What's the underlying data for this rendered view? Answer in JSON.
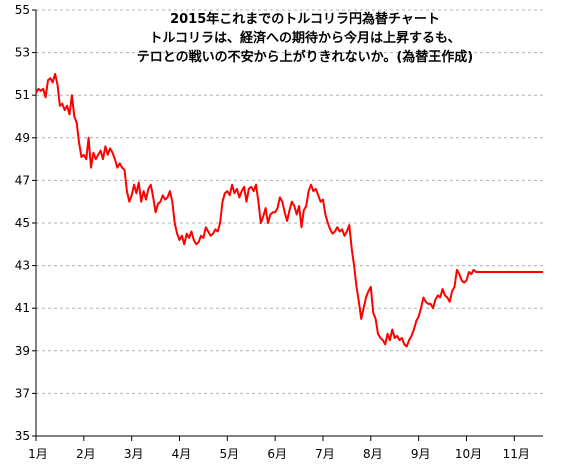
{
  "chart_data": {
    "type": "line",
    "title_lines": [
      "2015年これまでのトルコリラ円為替チャート",
      "トルコリラは、経済への期待から今月は上昇するも、",
      "テロとの戦いの不安から上がりきれないか。(為替王作成)"
    ],
    "xlabel": "",
    "ylabel": "",
    "ylim": [
      35,
      55
    ],
    "xlim": [
      0,
      10.6
    ],
    "grid": true,
    "grid_style": "dashed",
    "line_color": "#ff0000",
    "y_ticks": [
      35,
      37,
      39,
      41,
      43,
      45,
      47,
      49,
      51,
      53,
      55
    ],
    "x_ticks": [
      {
        "pos": 0,
        "label": "1月"
      },
      {
        "pos": 1,
        "label": "2月"
      },
      {
        "pos": 2,
        "label": "3月"
      },
      {
        "pos": 3,
        "label": "4月"
      },
      {
        "pos": 4,
        "label": "5月"
      },
      {
        "pos": 5,
        "label": "6月"
      },
      {
        "pos": 6,
        "label": "7月"
      },
      {
        "pos": 7,
        "label": "8月"
      },
      {
        "pos": 8,
        "label": "9月"
      },
      {
        "pos": 9,
        "label": "10月"
      },
      {
        "pos": 10,
        "label": "11月"
      }
    ],
    "series": [
      {
        "x": [
          0,
          0.05,
          0.1,
          0.15,
          0.2,
          0.25,
          0.3,
          0.35,
          0.4,
          0.45,
          0.5,
          0.55,
          0.6,
          0.65,
          0.7,
          0.75,
          0.8,
          0.85,
          0.9,
          0.95,
          1.0,
          1.05,
          1.1,
          1.15,
          1.2,
          1.25,
          1.3,
          1.35,
          1.4,
          1.45,
          1.5,
          1.55,
          1.6,
          1.65,
          1.7,
          1.75,
          1.8,
          1.85,
          1.9,
          1.95,
          2.0,
          2.05,
          2.1,
          2.15,
          2.2,
          2.25,
          2.3,
          2.35,
          2.4,
          2.45,
          2.5,
          2.55,
          2.6,
          2.65,
          2.7,
          2.75,
          2.8,
          2.85,
          2.9,
          2.95,
          3.0,
          3.05,
          3.1,
          3.15,
          3.2,
          3.25,
          3.3,
          3.35,
          3.4,
          3.45,
          3.5,
          3.55,
          3.6,
          3.65,
          3.7,
          3.75,
          3.8,
          3.85,
          3.9,
          3.95,
          4.0,
          4.05,
          4.1,
          4.15,
          4.2,
          4.25,
          4.3,
          4.35,
          4.4,
          4.45,
          4.5,
          4.55,
          4.6,
          4.65,
          4.7,
          4.75,
          4.8,
          4.85,
          4.9,
          4.95,
          5.0,
          5.05,
          5.1,
          5.15,
          5.2,
          5.25,
          5.3,
          5.35,
          5.4,
          5.45,
          5.5,
          5.55,
          5.6,
          5.65,
          5.7,
          5.75,
          5.8,
          5.85,
          5.9,
          5.95,
          6.0,
          6.05,
          6.1,
          6.15,
          6.2,
          6.25,
          6.3,
          6.35,
          6.4,
          6.45,
          6.5,
          6.55,
          6.6,
          6.65,
          6.7,
          6.75,
          6.8,
          6.85,
          6.9,
          6.95,
          7.0,
          7.05,
          7.1,
          7.15,
          7.2,
          7.25,
          7.3,
          7.35,
          7.4,
          7.45,
          7.5,
          7.55,
          7.6,
          7.65,
          7.7,
          7.75,
          7.8,
          7.85,
          7.9,
          7.95,
          8.0,
          8.05,
          8.1,
          8.15,
          8.2,
          8.25,
          8.3,
          8.35,
          8.4,
          8.45,
          8.5,
          8.55,
          8.6,
          8.65,
          8.7,
          8.75,
          8.8,
          8.85,
          8.9,
          8.95,
          9.0,
          9.05,
          9.1,
          9.15,
          9.2,
          9.25,
          9.3,
          9.35,
          9.4,
          9.45,
          9.5,
          9.55,
          9.6,
          9.65,
          9.7,
          9.75,
          9.8,
          9.85,
          9.9,
          9.95,
          10.0,
          10.05,
          10.1,
          10.15,
          10.2,
          10.25,
          10.3,
          10.35,
          10.4,
          10.45,
          10.5,
          10.55,
          10.6
        ],
        "y": [
          51.1,
          51.3,
          51.2,
          51.3,
          50.9,
          51.7,
          51.8,
          51.6,
          52.0,
          51.5,
          50.5,
          50.6,
          50.3,
          50.5,
          50.1,
          51.0,
          50.0,
          49.7,
          48.8,
          48.1,
          48.2,
          48.0,
          49.0,
          47.6,
          48.3,
          48.0,
          48.2,
          48.4,
          48.0,
          48.6,
          48.2,
          48.5,
          48.3,
          48.0,
          47.6,
          47.8,
          47.6,
          47.5,
          46.5,
          46.0,
          46.3,
          46.8,
          46.4,
          46.9,
          46.0,
          46.5,
          46.1,
          46.6,
          46.8,
          46.2,
          45.5,
          45.9,
          46.0,
          46.3,
          46.1,
          46.2,
          46.5,
          46.0,
          45.0,
          44.5,
          44.2,
          44.4,
          44.0,
          44.5,
          44.3,
          44.6,
          44.2,
          44.0,
          44.1,
          44.4,
          44.3,
          44.8,
          44.6,
          44.4,
          44.5,
          44.7,
          44.6,
          45.0,
          46.0,
          46.4,
          46.5,
          46.3,
          46.8,
          46.4,
          46.6,
          46.2,
          46.5,
          46.7,
          46.0,
          46.6,
          46.7,
          46.5,
          46.8,
          46.0,
          45.0,
          45.3,
          45.7,
          45.0,
          45.4,
          45.5,
          45.5,
          45.7,
          46.2,
          46.0,
          45.5,
          45.1,
          45.6,
          46.0,
          45.8,
          45.4,
          45.8,
          44.8,
          45.6,
          45.8,
          46.5,
          46.8,
          46.5,
          46.6,
          46.3,
          46.0,
          46.1,
          45.4,
          45.0,
          44.7,
          44.5,
          44.6,
          44.8,
          44.6,
          44.7,
          44.4,
          44.6,
          44.9,
          43.8,
          43.0,
          42.0,
          41.3,
          40.5,
          41.0,
          41.5,
          41.8,
          42.0,
          40.8,
          40.5,
          39.8,
          39.6,
          39.5,
          39.3,
          39.8,
          39.5,
          40.0,
          39.6,
          39.7,
          39.5,
          39.6,
          39.3,
          39.2,
          39.5,
          39.7,
          40.0,
          40.4,
          40.6,
          41.0,
          41.5,
          41.3,
          41.2,
          41.2,
          41.0,
          41.4,
          41.6,
          41.5,
          41.9,
          41.6,
          41.5,
          41.3,
          41.8,
          42.0,
          42.8,
          42.6,
          42.3,
          42.2,
          42.3,
          42.7,
          42.6,
          42.8,
          42.7,
          42.7,
          42.7,
          42.7,
          42.7,
          42.7,
          42.7,
          42.7,
          42.7,
          42.7,
          42.7,
          42.7,
          42.7,
          42.7,
          42.7,
          42.7,
          42.7,
          42.7,
          42.7,
          42.7,
          42.7,
          42.7,
          42.7,
          42.7,
          42.7,
          42.7,
          42.7,
          42.7,
          42.7
        ]
      }
    ]
  }
}
